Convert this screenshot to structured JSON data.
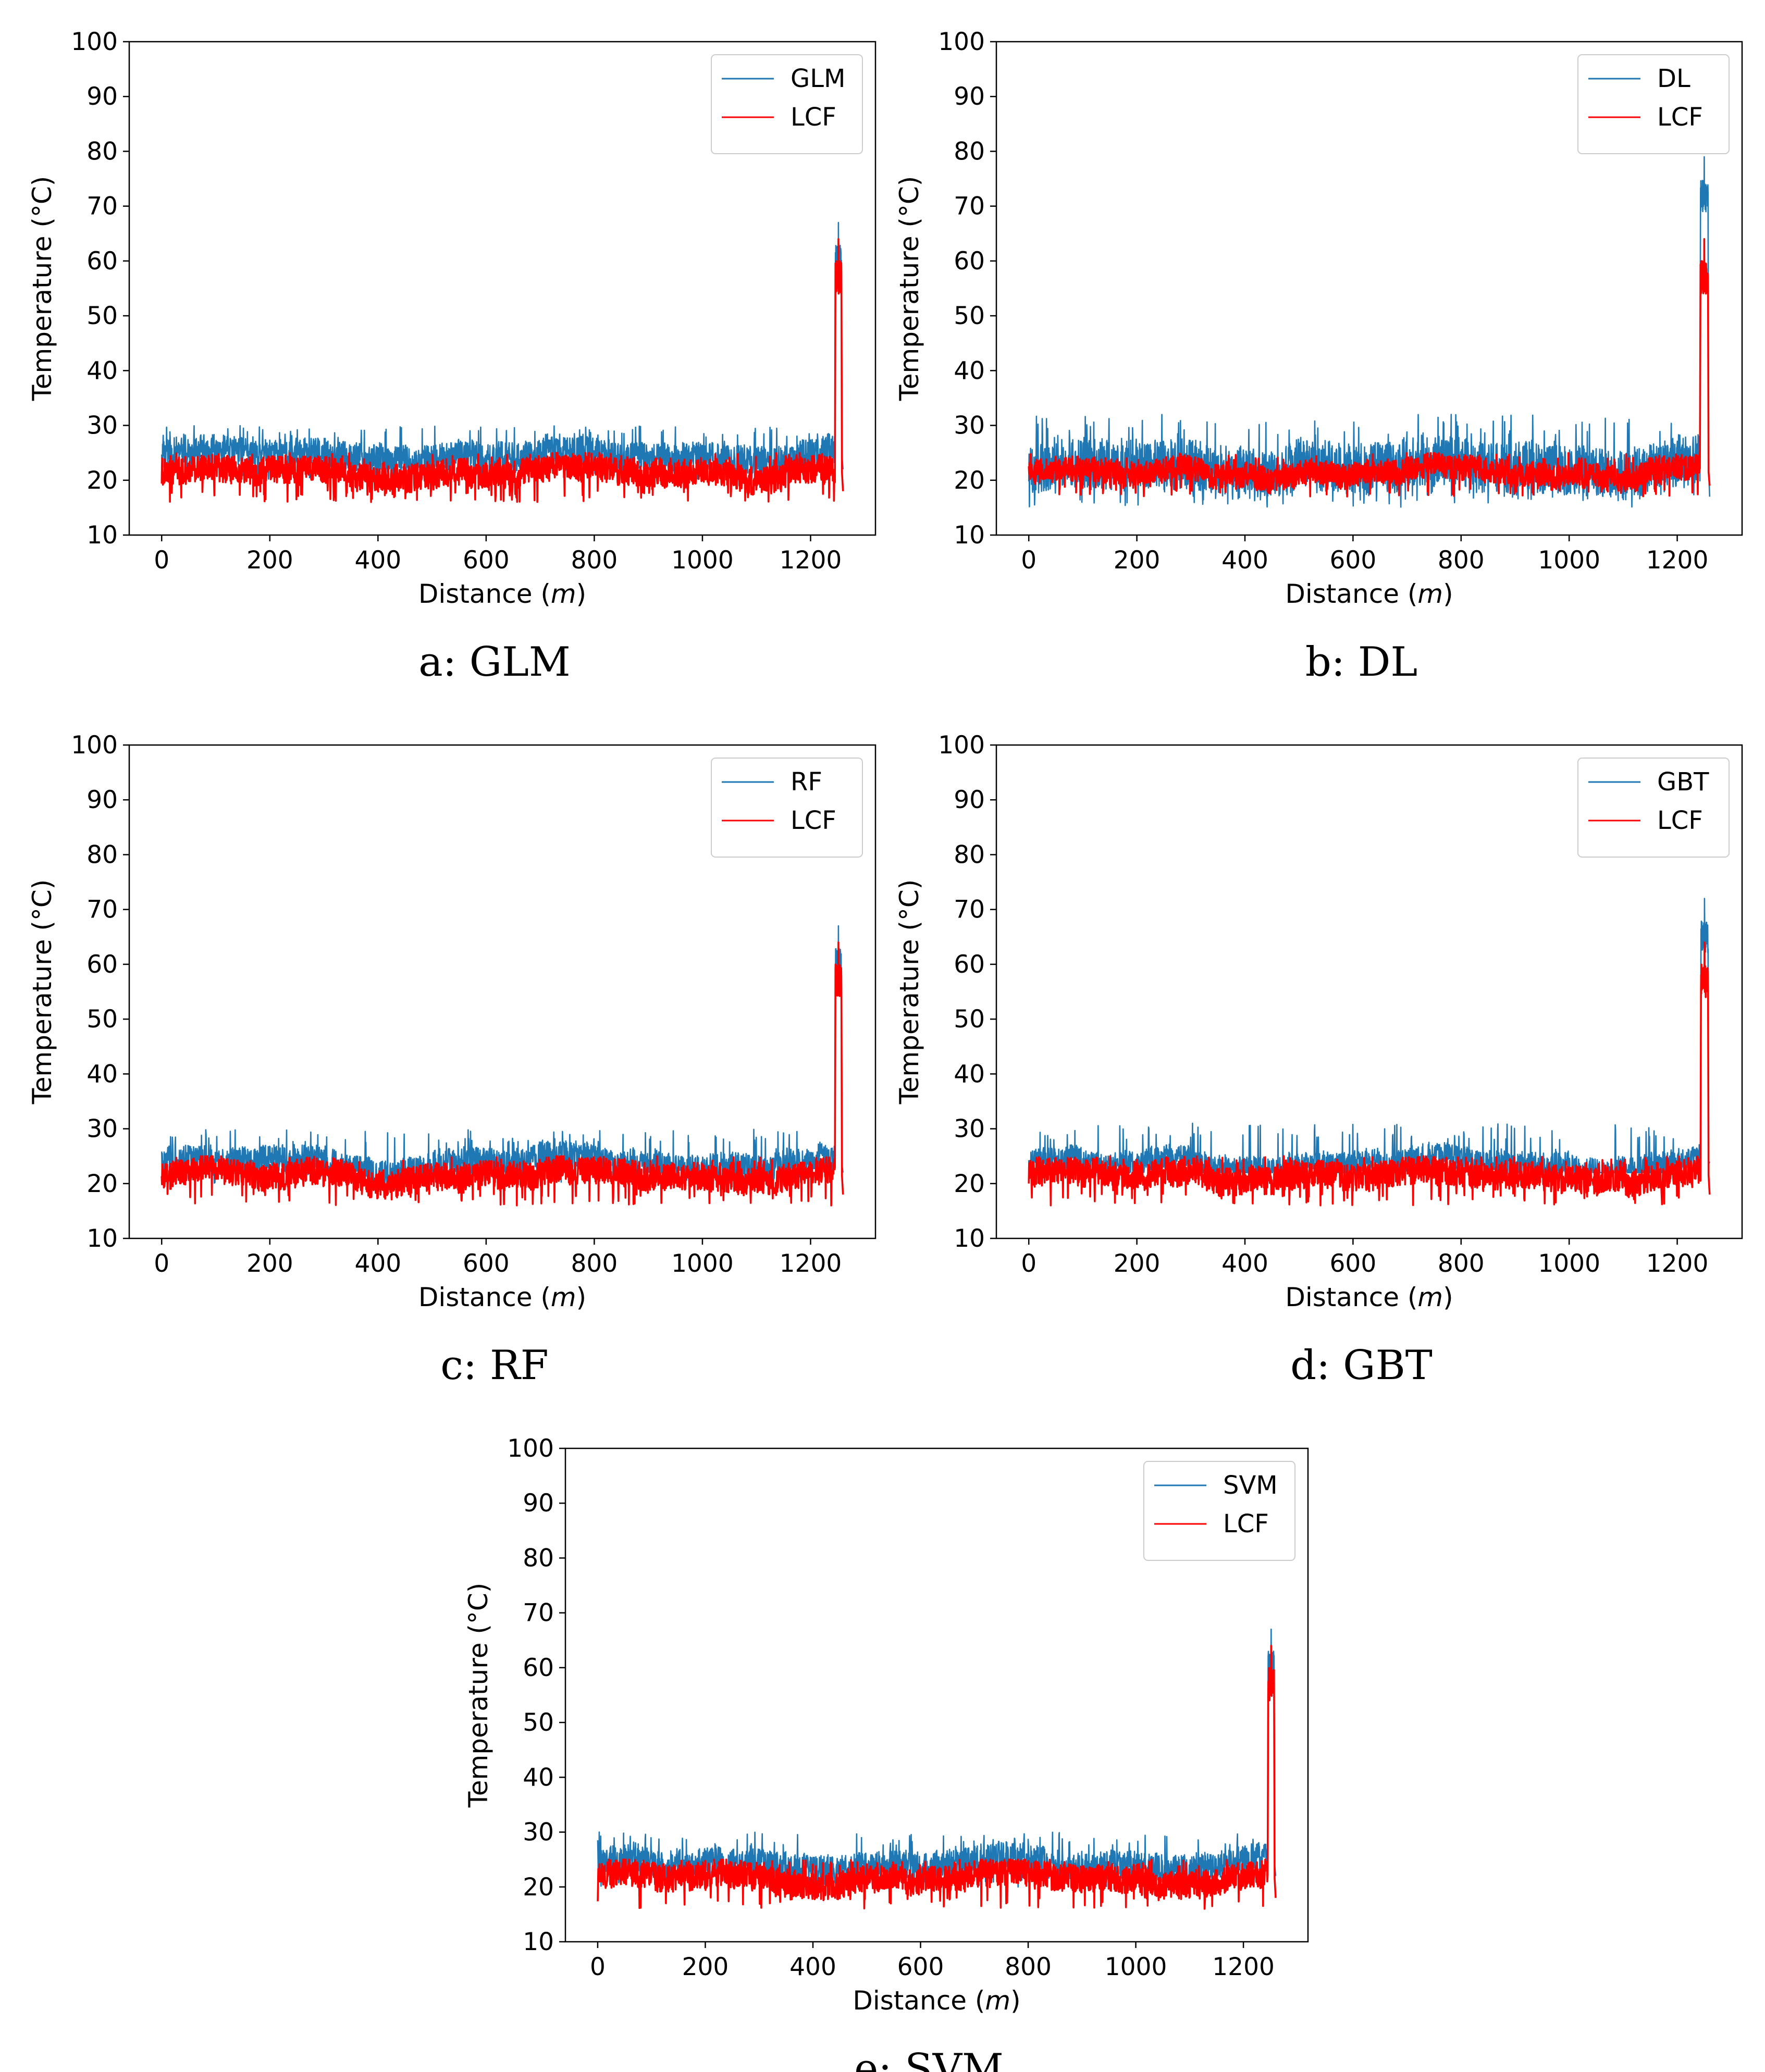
{
  "colors": {
    "model": "#1f77b4",
    "lcf": "#ff0000"
  },
  "chart_data": [
    {
      "type": "line",
      "id": "glm",
      "caption": "a: GLM",
      "xlabel_prefix": "Distance (",
      "xlabel_unit": "m",
      "xlabel_suffix": ")",
      "ylabel": "Temperature (°C)",
      "xlim": [
        -60,
        1320
      ],
      "ylim": [
        10,
        100
      ],
      "xticks": [
        "0",
        "200",
        "400",
        "600",
        "800",
        "1000",
        "1200"
      ],
      "yticks": [
        "10",
        "20",
        "30",
        "40",
        "50",
        "60",
        "70",
        "80",
        "90",
        "100"
      ],
      "legend_loc": "top-right",
      "series": [
        {
          "name": "GLM",
          "color": "#1f77b4",
          "baseline_mean": 24.5,
          "baseline_range": [
            20,
            30
          ],
          "spike_x": [
            1245,
            1258
          ],
          "spike_peak": 67
        },
        {
          "name": "LCF",
          "color": "#ff0000",
          "baseline_mean": 21.5,
          "baseline_range": [
            16,
            25
          ],
          "spike_x": [
            1245,
            1258
          ],
          "spike_peak": 64
        }
      ]
    },
    {
      "type": "line",
      "id": "dl",
      "caption": "b: DL",
      "xlabel_prefix": "Distance (",
      "xlabel_unit": "m",
      "xlabel_suffix": ")",
      "ylabel": "Temperature (°C)",
      "xlim": [
        -60,
        1320
      ],
      "ylim": [
        10,
        100
      ],
      "xticks": [
        "0",
        "200",
        "400",
        "600",
        "800",
        "1000",
        "1200"
      ],
      "yticks": [
        "10",
        "20",
        "30",
        "40",
        "50",
        "60",
        "70",
        "80",
        "90",
        "100"
      ],
      "legend_loc": "top-right",
      "series": [
        {
          "name": "DL",
          "color": "#1f77b4",
          "baseline_mean": 22.5,
          "baseline_range": [
            15,
            32
          ],
          "spike_x": [
            1242,
            1258
          ],
          "spike_peak": 79
        },
        {
          "name": "LCF",
          "color": "#ff0000",
          "baseline_mean": 21.5,
          "baseline_range": [
            17,
            25
          ],
          "spike_x": [
            1242,
            1258
          ],
          "spike_peak": 64
        }
      ]
    },
    {
      "type": "line",
      "id": "rf",
      "caption": "c: RF",
      "xlabel_prefix": "Distance (",
      "xlabel_unit": "m",
      "xlabel_suffix": ")",
      "ylabel": "Temperature (°C)",
      "xlim": [
        -60,
        1320
      ],
      "ylim": [
        10,
        100
      ],
      "xticks": [
        "0",
        "200",
        "400",
        "600",
        "800",
        "1000",
        "1200"
      ],
      "yticks": [
        "10",
        "20",
        "30",
        "40",
        "50",
        "60",
        "70",
        "80",
        "90",
        "100"
      ],
      "legend_loc": "top-right",
      "series": [
        {
          "name": "RF",
          "color": "#1f77b4",
          "baseline_mean": 23.5,
          "baseline_range": [
            20,
            30
          ],
          "spike_x": [
            1245,
            1258
          ],
          "spike_peak": 67
        },
        {
          "name": "LCF",
          "color": "#ff0000",
          "baseline_mean": 21.5,
          "baseline_range": [
            16,
            25
          ],
          "spike_x": [
            1245,
            1258
          ],
          "spike_peak": 64
        }
      ]
    },
    {
      "type": "line",
      "id": "gbt",
      "caption": "d: GBT",
      "xlabel_prefix": "Distance (",
      "xlabel_unit": "m",
      "xlabel_suffix": ")",
      "ylabel": "Temperature (°C)",
      "xlim": [
        -60,
        1320
      ],
      "ylim": [
        10,
        100
      ],
      "xticks": [
        "0",
        "200",
        "400",
        "600",
        "800",
        "1000",
        "1200"
      ],
      "yticks": [
        "10",
        "20",
        "30",
        "40",
        "50",
        "60",
        "70",
        "80",
        "90",
        "100"
      ],
      "legend_loc": "top-right",
      "series": [
        {
          "name": "GBT",
          "color": "#1f77b4",
          "baseline_mean": 23.5,
          "baseline_range": [
            22,
            31
          ],
          "spike_x": [
            1243,
            1258
          ],
          "spike_peak": 72
        },
        {
          "name": "LCF",
          "color": "#ff0000",
          "baseline_mean": 21.5,
          "baseline_range": [
            16,
            25
          ],
          "spike_x": [
            1243,
            1258
          ],
          "spike_peak": 64
        }
      ]
    },
    {
      "type": "line",
      "id": "svm",
      "caption": "e: SVM",
      "xlabel_prefix": "Distance (",
      "xlabel_unit": "m",
      "xlabel_suffix": ")",
      "ylabel": "Temperature (°C)",
      "xlim": [
        -60,
        1320
      ],
      "ylim": [
        10,
        100
      ],
      "xticks": [
        "0",
        "200",
        "400",
        "600",
        "800",
        "1000",
        "1200"
      ],
      "yticks": [
        "10",
        "20",
        "30",
        "40",
        "50",
        "60",
        "70",
        "80",
        "90",
        "100"
      ],
      "legend_loc": "top-right",
      "series": [
        {
          "name": "SVM",
          "color": "#1f77b4",
          "baseline_mean": 24,
          "baseline_range": [
            20,
            30
          ],
          "spike_x": [
            1245,
            1258
          ],
          "spike_peak": 67
        },
        {
          "name": "LCF",
          "color": "#ff0000",
          "baseline_mean": 21.5,
          "baseline_range": [
            16,
            25
          ],
          "spike_x": [
            1245,
            1258
          ],
          "spike_peak": 64
        }
      ]
    }
  ]
}
